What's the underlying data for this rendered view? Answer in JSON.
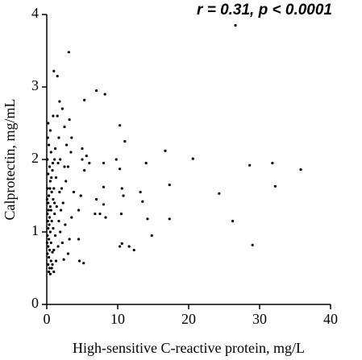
{
  "chart_data": {
    "type": "scatter",
    "annotation": "r = 0.31, p < 0.0001",
    "x_label": "High-sensitive C-reactive protein, mg/L",
    "y_label": "Calprotectin, mg/mL",
    "xlim": [
      0,
      40
    ],
    "ylim": [
      0,
      4
    ],
    "xticks": [
      0,
      10,
      20,
      30,
      40
    ],
    "yticks": [
      0,
      1,
      2,
      3,
      4
    ],
    "color": "#000000",
    "x": [
      26.6,
      3.1,
      1.0,
      1.5,
      7.0,
      8.2,
      5.3,
      10.3,
      11.0,
      16.7,
      20.6,
      14.0,
      28.6,
      31.8,
      35.8,
      32.2,
      24.3,
      26.2,
      29.0,
      17.3,
      17.3,
      13.2,
      13.5,
      14.2,
      14.8,
      12.3,
      11.6,
      10.6,
      10.3,
      10.5,
      10.8,
      10.6,
      8.0,
      8.0,
      8.3,
      7.5,
      6.8,
      7.0,
      8.0,
      9.8,
      10.3,
      6.0,
      5.6,
      5.0,
      5.0,
      5.3,
      4.8,
      4.5,
      4.6,
      5.2,
      4.5,
      3.2,
      3.5,
      3.4,
      3.0,
      3.8,
      3.5,
      3.2,
      3.0,
      2.2,
      2.5,
      2.8,
      2.5,
      2.7,
      2.3,
      2.6,
      2.2,
      2.4,
      1.8,
      1.5,
      1.7,
      1.2,
      1.6,
      1.3,
      1.8,
      1.4,
      1.7,
      1.2,
      1.6,
      1.3,
      1.0,
      0.2,
      0.3,
      0.5,
      0.1,
      0.4,
      0.6,
      0.2,
      0.5,
      0.8,
      0.1,
      0.3,
      0.7,
      0.2,
      0.5,
      0.9,
      0.1,
      0.4,
      0.7,
      0.2,
      0.5,
      0.9,
      0.1,
      0.3,
      0.6,
      0.2,
      0.4,
      0.8,
      0.1,
      0.3,
      0.6,
      0.2,
      0.4,
      0.7,
      0.3,
      0.5,
      0.9,
      1.1,
      1.0,
      1.1,
      1.0,
      0.8,
      1.1,
      0.6,
      0.35,
      0.15,
      0.25,
      0.45,
      0.65,
      0.85,
      0.05,
      0.05,
      0.15,
      1.9,
      2.0,
      2.1,
      1.9
    ],
    "values": [
      3.85,
      3.48,
      3.22,
      3.15,
      2.95,
      2.9,
      2.82,
      2.47,
      2.25,
      2.12,
      2.01,
      1.95,
      1.92,
      1.95,
      1.86,
      1.63,
      1.53,
      1.15,
      0.82,
      1.65,
      1.18,
      1.55,
      1.42,
      1.18,
      0.95,
      0.75,
      0.8,
      0.84,
      0.8,
      1.25,
      1.5,
      1.6,
      1.62,
      1.38,
      1.2,
      1.25,
      1.25,
      1.45,
      1.95,
      2.0,
      1.87,
      1.95,
      2.05,
      2.15,
      2.0,
      1.85,
      1.5,
      1.3,
      0.6,
      0.57,
      0.9,
      2.55,
      2.3,
      2.1,
      1.9,
      1.55,
      1.2,
      0.9,
      0.7,
      2.7,
      2.45,
      2.2,
      1.9,
      1.7,
      1.4,
      1.1,
      0.85,
      0.62,
      2.8,
      2.6,
      2.3,
      2.15,
      1.95,
      1.75,
      1.55,
      1.35,
      1.15,
      0.95,
      0.8,
      0.6,
      0.45,
      2.5,
      2.2,
      2.4,
      2.0,
      1.9,
      2.1,
      1.8,
      1.7,
      1.85,
      1.6,
      1.5,
      1.55,
      1.4,
      1.35,
      1.45,
      1.25,
      1.2,
      1.15,
      1.05,
      1.0,
      1.05,
      0.95,
      0.9,
      0.85,
      0.8,
      0.75,
      0.72,
      0.7,
      0.65,
      0.6,
      0.55,
      0.5,
      0.5,
      0.45,
      0.42,
      2.6,
      2.0,
      1.6,
      1.25,
      0.75,
      0.55,
      1.4,
      1.3,
      1.1,
      1.15,
      1.3,
      1.6,
      1.75,
      1.95,
      0.85,
      1.45,
      2.3,
      1.0,
      1.3,
      1.6,
      2.0
    ]
  }
}
